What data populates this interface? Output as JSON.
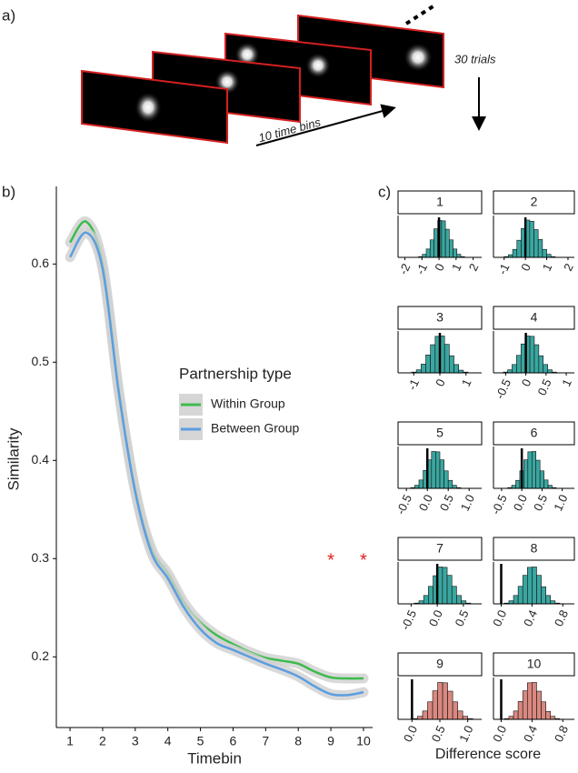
{
  "panel_labels": [
    "a)",
    "b)",
    "c)"
  ],
  "diagram": {
    "time_label": "10 time bins",
    "trials_label": "30 trials"
  },
  "facet_xlabel": "Difference score",
  "chart_data": [
    {
      "type": "line",
      "xlabel": "Timebin",
      "ylabel": "Similarity",
      "legend_title": "Partnership type",
      "x": [
        1,
        1.5,
        2,
        2.5,
        3,
        3.5,
        4,
        4.5,
        5,
        5.5,
        6,
        6.5,
        7,
        7.5,
        8,
        8.5,
        9,
        9.5,
        10
      ],
      "series": [
        {
          "name": "Within Group",
          "color": "#3dbb4e",
          "values": [
            0.622,
            0.643,
            0.6,
            0.47,
            0.37,
            0.31,
            0.285,
            0.255,
            0.235,
            0.222,
            0.213,
            0.205,
            0.199,
            0.196,
            0.193,
            0.185,
            0.179,
            0.178,
            0.178
          ]
        },
        {
          "name": "Between Group",
          "color": "#5b9ee0",
          "values": [
            0.607,
            0.632,
            0.595,
            0.468,
            0.368,
            0.306,
            0.28,
            0.25,
            0.228,
            0.214,
            0.207,
            0.2,
            0.193,
            0.187,
            0.18,
            0.17,
            0.162,
            0.161,
            0.164
          ]
        }
      ],
      "xlim": [
        0.58,
        10.28
      ],
      "xticks": [
        1,
        2,
        3,
        4,
        5,
        6,
        7,
        8,
        9,
        10
      ],
      "ylim": [
        0.128,
        0.679
      ],
      "yticks": [
        0.2,
        0.3,
        0.4,
        0.5,
        0.6
      ],
      "annotation": {
        "label": "*",
        "x": [
          9,
          10
        ],
        "y": [
          0.3,
          0.3
        ],
        "color": "#e0201b"
      }
    },
    {
      "type": "histogram",
      "title": "1",
      "color": "#3aa6a0",
      "vline": 0,
      "xlim": [
        -2.4,
        2.5
      ],
      "xticks": [
        -2,
        -1,
        0,
        1,
        2
      ],
      "ylim": [
        0,
        110
      ],
      "bins": [
        -1.2,
        -0.975,
        -0.75,
        -0.525,
        -0.3,
        -0.075,
        0.15,
        0.375,
        0.6,
        0.825,
        1.05,
        1.275,
        1.5
      ],
      "counts": [
        2,
        8,
        22,
        46,
        75,
        97,
        96,
        74,
        46,
        22,
        8,
        2
      ]
    },
    {
      "type": "histogram",
      "title": "2",
      "color": "#3aa6a0",
      "vline": 0,
      "xlim": [
        -1.5,
        2.3
      ],
      "xticks": [
        -1,
        0,
        1,
        2
      ],
      "ylim": [
        0,
        110
      ],
      "bins": [
        -1,
        -0.8,
        -0.6,
        -0.4,
        -0.2,
        0,
        0.2,
        0.4,
        0.6,
        0.8,
        1,
        1.2,
        1.4
      ],
      "counts": [
        2,
        7,
        21,
        45,
        76,
        98,
        95,
        73,
        47,
        21,
        8,
        2
      ]
    },
    {
      "type": "histogram",
      "title": "3",
      "color": "#3aa6a0",
      "vline": 0,
      "xlim": [
        -1.6,
        1.6
      ],
      "xticks": [
        -1,
        0,
        1
      ],
      "ylim": [
        0,
        110
      ],
      "bins": [
        -1.08,
        -0.9,
        -0.72,
        -0.54,
        -0.36,
        -0.18,
        0,
        0.18,
        0.36,
        0.54,
        0.72,
        0.9,
        1.08
      ],
      "counts": [
        2,
        8,
        23,
        47,
        74,
        96,
        97,
        75,
        45,
        22,
        7,
        2
      ]
    },
    {
      "type": "histogram",
      "title": "4",
      "color": "#3aa6a0",
      "vline": 0,
      "xlim": [
        -0.8,
        1.2
      ],
      "xticks": [
        -0.5,
        0,
        0.5,
        1
      ],
      "ylim": [
        0,
        110
      ],
      "bins": [
        -0.56,
        -0.45,
        -0.34,
        -0.23,
        -0.12,
        -0.01,
        0.1,
        0.21,
        0.32,
        0.43,
        0.54,
        0.65,
        0.76
      ],
      "counts": [
        2,
        8,
        22,
        46,
        76,
        97,
        96,
        74,
        45,
        22,
        8,
        2
      ]
    },
    {
      "type": "histogram",
      "title": "5",
      "color": "#3aa6a0",
      "vline": 0,
      "xlim": [
        -0.7,
        1.3
      ],
      "xticks": [
        -0.5,
        {
          "value": 0,
          "label": "0.0"
        },
        0.5,
        {
          "value": 1,
          "label": "1.0"
        }
      ],
      "ylim": [
        0,
        110
      ],
      "bins": [
        -0.4,
        -0.3,
        -0.2,
        -0.1,
        0,
        0.1,
        0.2,
        0.3,
        0.4,
        0.5,
        0.6,
        0.7,
        0.8
      ],
      "counts": [
        2,
        8,
        22,
        47,
        75,
        97,
        96,
        75,
        46,
        21,
        8,
        2
      ]
    },
    {
      "type": "histogram",
      "title": "6",
      "color": "#3aa6a0",
      "vline": 0,
      "xlim": [
        -0.7,
        1.3
      ],
      "xticks": [
        -0.5,
        {
          "value": 0,
          "label": "0.0"
        },
        0.5,
        {
          "value": 1,
          "label": "1.0"
        }
      ],
      "ylim": [
        0,
        110
      ],
      "bins": [
        -0.35,
        -0.25,
        -0.15,
        -0.05,
        0.05,
        0.15,
        0.25,
        0.35,
        0.45,
        0.55,
        0.65,
        0.75,
        0.85
      ],
      "counts": [
        2,
        8,
        21,
        46,
        75,
        96,
        97,
        74,
        46,
        22,
        8,
        2
      ]
    },
    {
      "type": "histogram",
      "title": "7",
      "color": "#3aa6a0",
      "vline": 0,
      "xlim": [
        -0.75,
        0.85
      ],
      "xticks": [
        -0.5,
        {
          "value": 0,
          "label": "0.0"
        },
        0.5
      ],
      "ylim": [
        0,
        110
      ],
      "bins": [
        -0.44,
        -0.35,
        -0.26,
        -0.17,
        -0.08,
        0.01,
        0.1,
        0.19,
        0.28,
        0.37,
        0.46,
        0.55,
        0.64
      ],
      "counts": [
        2,
        8,
        22,
        46,
        74,
        97,
        96,
        75,
        46,
        22,
        8,
        2
      ]
    },
    {
      "type": "histogram",
      "title": "8",
      "color": "#3aa6a0",
      "vline": 0,
      "xlim": [
        -0.1,
        0.95
      ],
      "xticks": [
        {
          "value": 0,
          "label": "0.0"
        },
        0.4,
        0.8
      ],
      "ylim": [
        0,
        110
      ],
      "bins": [
        0.04,
        0.1,
        0.16,
        0.22,
        0.28,
        0.34,
        0.4,
        0.46,
        0.52,
        0.58,
        0.64,
        0.7,
        0.76
      ],
      "counts": [
        2,
        8,
        22,
        46,
        75,
        96,
        97,
        75,
        45,
        22,
        8,
        2
      ]
    },
    {
      "type": "histogram",
      "title": "9",
      "color": "#d98880",
      "vline": 0,
      "xlim": [
        -0.25,
        1.25
      ],
      "xticks": [
        {
          "value": 0,
          "label": "0.0"
        },
        0.5,
        {
          "value": 1,
          "label": "1.0"
        }
      ],
      "ylim": [
        0,
        110
      ],
      "bins": [
        0.01,
        0.1,
        0.19,
        0.28,
        0.37,
        0.46,
        0.55,
        0.64,
        0.73,
        0.82,
        0.91,
        1.0,
        1.09
      ],
      "counts": [
        2,
        8,
        22,
        46,
        75,
        97,
        96,
        74,
        46,
        22,
        8,
        2
      ]
    },
    {
      "type": "histogram",
      "title": "10",
      "color": "#d98880",
      "vline": 0,
      "xlim": [
        -0.1,
        0.95
      ],
      "xticks": [
        {
          "value": 0,
          "label": "0.0"
        },
        0.4,
        0.8
      ],
      "ylim": [
        0,
        110
      ],
      "bins": [
        0.04,
        0.1,
        0.16,
        0.22,
        0.28,
        0.34,
        0.4,
        0.46,
        0.52,
        0.58,
        0.64,
        0.7,
        0.76
      ],
      "counts": [
        2,
        8,
        22,
        47,
        75,
        96,
        97,
        74,
        46,
        21,
        8,
        2
      ]
    }
  ]
}
